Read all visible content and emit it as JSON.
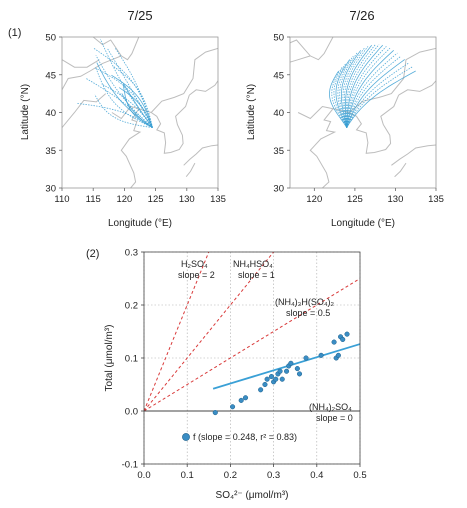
{
  "maps": [
    {
      "title": "7/25",
      "panel_label": "(1)",
      "xlabel": "Longitude (°E)",
      "ylabel": "Latitude (°N)",
      "xticks": [
        "110",
        "115",
        "120",
        "125",
        "130",
        "135"
      ],
      "yticks": [
        "30",
        "35",
        "40",
        "45",
        "50"
      ],
      "xlim": [
        110,
        135
      ],
      "ylim": [
        30,
        50
      ],
      "origin": [
        124.5,
        38.0
      ],
      "trajectory_color": "#3a9fd2"
    },
    {
      "title": "7/26",
      "panel_label": "",
      "xlabel": "Longitude (°E)",
      "ylabel": "Latitude (°N)",
      "xticks": [
        "120",
        "125",
        "130",
        "135"
      ],
      "yticks": [
        "30",
        "35",
        "40",
        "45",
        "50"
      ],
      "xlim": [
        117,
        135
      ],
      "ylim": [
        30,
        50
      ],
      "origin": [
        124.0,
        38.0
      ],
      "trajectory_color": "#3a9fd2"
    }
  ],
  "chart_data": {
    "type": "scatter",
    "panel_label": "(2)",
    "xlabel": "SO₄²⁻ (μmol/m³)",
    "ylabel": "Total (μmol/m³)",
    "xlim": [
      0,
      0.5
    ],
    "ylim": [
      -0.1,
      0.3
    ],
    "xticks": [
      "0.0",
      "0.1",
      "0.2",
      "0.3",
      "0.4",
      "0.5"
    ],
    "yticks": [
      "-0.1",
      "0.0",
      "0.1",
      "0.2",
      "0.3"
    ],
    "grid": "dotted",
    "points": [
      [
        0.165,
        -0.003
      ],
      [
        0.205,
        0.008
      ],
      [
        0.225,
        0.02
      ],
      [
        0.235,
        0.025
      ],
      [
        0.27,
        0.04
      ],
      [
        0.28,
        0.05
      ],
      [
        0.285,
        0.06
      ],
      [
        0.295,
        0.065
      ],
      [
        0.3,
        0.055
      ],
      [
        0.305,
        0.06
      ],
      [
        0.31,
        0.07
      ],
      [
        0.315,
        0.075
      ],
      [
        0.32,
        0.06
      ],
      [
        0.33,
        0.075
      ],
      [
        0.335,
        0.085
      ],
      [
        0.34,
        0.09
      ],
      [
        0.355,
        0.08
      ],
      [
        0.36,
        0.07
      ],
      [
        0.375,
        0.1
      ],
      [
        0.41,
        0.105
      ],
      [
        0.44,
        0.13
      ],
      [
        0.445,
        0.1
      ],
      [
        0.45,
        0.105
      ],
      [
        0.455,
        0.14
      ],
      [
        0.46,
        0.135
      ],
      [
        0.47,
        0.145
      ]
    ],
    "point_color": "#3a8dc4",
    "fit": {
      "slope": 0.248,
      "x_range": [
        0.16,
        0.5
      ],
      "at_x0_16": 0.042,
      "color": "#3aa0d6"
    },
    "reference_lines": [
      {
        "label": "H₂SO₄",
        "slope_label": "slope = 2",
        "slope": 2
      },
      {
        "label": "NH₄HSO₄",
        "slope_label": "slope = 1",
        "slope": 1
      },
      {
        "label": "(NH₄)₃H(SO₄)₂",
        "slope_label": "slope = 0.5",
        "slope": 0.5
      },
      {
        "label": "(NH₄)₂SO₄",
        "slope_label": "slope = 0",
        "slope": 0
      }
    ],
    "legend_text": "f (slope = 0.248, r² = 0.83)"
  }
}
